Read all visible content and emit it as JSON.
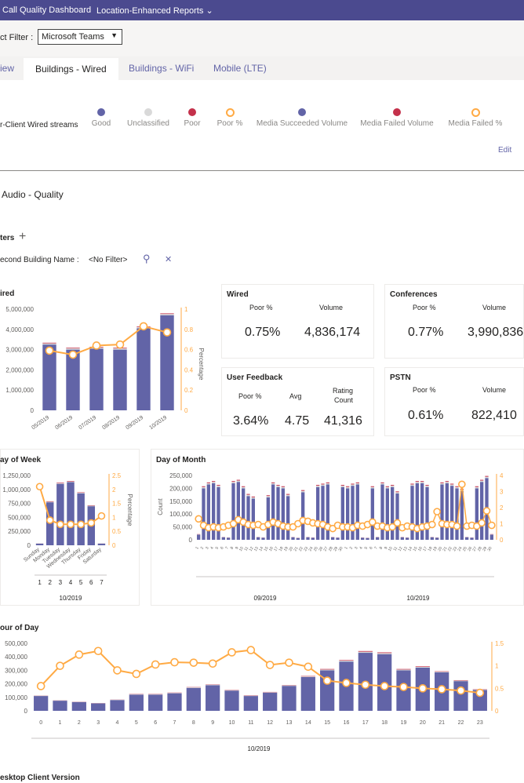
{
  "header": {
    "app_title": "Call Quality Dashboard",
    "nav_reports": "Location-Enhanced Reports",
    "nav_reports_chevron": "⌄"
  },
  "filter": {
    "label": "ct Filter :",
    "value": "Microsoft Teams",
    "chevron": "▼"
  },
  "tabs": [
    {
      "label": "iew"
    },
    {
      "label": "Buildings - Wired"
    },
    {
      "label": "Buildings - WiFi"
    },
    {
      "label": "Mobile (LTE)"
    }
  ],
  "streams": {
    "title": "r-Client Wired streams",
    "legend": [
      {
        "label": "Good",
        "color": "#6264a7",
        "style": "fill"
      },
      {
        "label": "Unclassified",
        "color": "#d9d9d9",
        "style": "fill"
      },
      {
        "label": "Poor",
        "color": "#c4314b",
        "style": "fill"
      },
      {
        "label": "Poor %",
        "color": "#ffaa44",
        "style": "ring"
      },
      {
        "label": "Media Succeeded Volume",
        "color": "#6264a7",
        "style": "fill"
      },
      {
        "label": "Media Failed Volume",
        "color": "#c4314b",
        "style": "fill"
      },
      {
        "label": "Media Failed %",
        "color": "#ffaa44",
        "style": "ring"
      }
    ],
    "edit_label": "Edit"
  },
  "section_title": "Audio - Quality",
  "filters": {
    "title": "ters",
    "add_icon": "+",
    "building_label": "econd Building Name :",
    "building_value": "<No Filter>",
    "search_icon": "⚲",
    "clear_icon": "✕"
  },
  "cards": {
    "wired": {
      "title": "Wired",
      "h1": "Poor %",
      "h2": "Volume",
      "v1": "0.75%",
      "v2": "4,836,174"
    },
    "conferences": {
      "title": "Conferences",
      "h1": "Poor %",
      "h2": "Volume",
      "v1": "0.77%",
      "v2": "3,990,836"
    },
    "feedback": {
      "title": "User Feedback",
      "h1": "Poor %",
      "h2": "Avg",
      "h3a": "Rating",
      "h3b": "Count",
      "v1": "3.64%",
      "v2": "4.75",
      "v3": "41,316"
    },
    "pstn": {
      "title": "PSTN",
      "h1": "Poor %",
      "h2": "Volume",
      "v1": "0.61%",
      "v2": "822,410"
    }
  },
  "chart_titles": {
    "wired": "ired",
    "dow": "ay of Week",
    "dom": "Day of Month",
    "hod": "our of Day",
    "desktop": "esktop Client Version"
  },
  "chart_data": [
    {
      "id": "wired",
      "type": "bar",
      "categories": [
        "05/2019",
        "06/2019",
        "07/2019",
        "08/2019",
        "09/2019",
        "10/2019"
      ],
      "series": [
        {
          "name": "Good",
          "values": [
            3250000,
            3000000,
            3050000,
            3000000,
            4050000,
            4700000
          ]
        },
        {
          "name": "Unclassified",
          "values": [
            60000,
            60000,
            60000,
            60000,
            60000,
            60000
          ]
        },
        {
          "name": "Poor",
          "values": [
            30000,
            30000,
            30000,
            30000,
            30000,
            30000
          ]
        },
        {
          "name": "Poor %",
          "values": [
            0.59,
            0.55,
            0.64,
            0.65,
            0.83,
            0.77
          ]
        }
      ],
      "yticks": [
        "0",
        "1,000,000",
        "2,000,000",
        "3,000,000",
        "4,000,000",
        "5,000,000"
      ],
      "ylim": [
        0,
        5000000
      ],
      "y2ticks": [
        "0",
        "0.2",
        "0.4",
        "0.6",
        "0.8",
        "1"
      ],
      "y2lim": [
        0,
        1
      ],
      "y2label": "Percentage"
    },
    {
      "id": "dow",
      "type": "bar",
      "categories": [
        "Sunday",
        "Monday",
        "Tuesday",
        "Wednesday",
        "Thursday",
        "Friday",
        "Saturday"
      ],
      "series": [
        {
          "name": "Good",
          "values": [
            30000,
            770000,
            1100000,
            1130000,
            930000,
            700000,
            30000
          ]
        },
        {
          "name": "Unclassified",
          "values": [
            2000,
            10000,
            12000,
            12000,
            10000,
            10000,
            2000
          ]
        },
        {
          "name": "Poor",
          "values": [
            1000,
            8000,
            9000,
            9000,
            8000,
            7000,
            1000
          ]
        },
        {
          "name": "Poor %",
          "values": [
            2.1,
            0.9,
            0.75,
            0.75,
            0.75,
            0.8,
            1.05
          ]
        }
      ],
      "xgroup": [
        "1",
        "2",
        "3",
        "4",
        "5",
        "6",
        "7"
      ],
      "period": "10/2019",
      "yticks": [
        "0",
        "250,000",
        "500,000",
        "750,000",
        "1,000,000",
        "1,250,000"
      ],
      "ylim": [
        0,
        1250000
      ],
      "y2ticks": [
        "0",
        "0.5",
        "1",
        "1.5",
        "2",
        "2.5"
      ],
      "y2lim": [
        0,
        2.5
      ],
      "y2label": "Percentage"
    },
    {
      "id": "dom",
      "type": "bar",
      "periods": [
        "09/2019",
        "10/2019"
      ],
      "ticks": [
        "1",
        "2",
        "3",
        "4",
        "5",
        "6",
        "7",
        "8",
        "9",
        "10",
        "11",
        "12",
        "13",
        "14",
        "15",
        "16",
        "17",
        "18",
        "19",
        "20",
        "21",
        "22",
        "23",
        "24",
        "25",
        "26",
        "27",
        "28",
        "29",
        "30"
      ],
      "series": [
        {
          "name": "Good",
          "values": [
            20000,
            200000,
            215000,
            220000,
            205000,
            10000,
            8000,
            220000,
            225000,
            200000,
            170000,
            160000,
            10000,
            8000,
            165000,
            215000,
            205000,
            200000,
            170000,
            10000,
            7000,
            185000,
            10000,
            8000,
            205000,
            210000,
            215000,
            10000,
            8000,
            205000,
            200000,
            210000,
            215000,
            8000,
            7000,
            200000,
            10000,
            215000,
            200000,
            205000,
            180000,
            10000,
            8000,
            210000,
            220000,
            220000,
            205000,
            10000,
            8000,
            215000,
            220000,
            210000,
            200000,
            190000,
            10000,
            8000,
            200000,
            225000,
            240000,
            20000
          ]
        },
        {
          "name": "Unclassified",
          "values": [
            1000,
            5000,
            5000,
            5000,
            5000,
            500,
            500,
            5000,
            5000,
            5000,
            5000,
            5000,
            500,
            500,
            5000,
            5000,
            5000,
            5000,
            5000,
            500,
            500,
            5000,
            500,
            500,
            5000,
            5000,
            5000,
            500,
            500,
            5000,
            5000,
            5000,
            5000,
            500,
            500,
            5000,
            500,
            5000,
            5000,
            5000,
            5000,
            500,
            500,
            5000,
            5000,
            5000,
            5000,
            500,
            500,
            5000,
            5000,
            5000,
            5000,
            5000,
            500,
            500,
            5000,
            5000,
            5000,
            1000
          ]
        },
        {
          "name": "Poor",
          "values": [
            1000,
            3000,
            3000,
            3000,
            3000,
            500,
            500,
            3000,
            3000,
            3000,
            3000,
            3000,
            500,
            500,
            3000,
            3000,
            3000,
            3000,
            3000,
            500,
            500,
            3000,
            500,
            500,
            3000,
            3000,
            3000,
            500,
            500,
            3000,
            3000,
            3000,
            3000,
            500,
            500,
            3000,
            500,
            3000,
            3000,
            3000,
            3000,
            500,
            500,
            3000,
            3000,
            3000,
            3000,
            500,
            500,
            3000,
            3000,
            3000,
            3000,
            3000,
            500,
            500,
            3000,
            3000,
            3000,
            1000
          ]
        },
        {
          "name": "Poor %",
          "values": [
            1.3,
            0.9,
            0.75,
            0.8,
            0.75,
            0.8,
            0.9,
            1.0,
            1.25,
            1.1,
            0.95,
            0.9,
            0.95,
            0.8,
            0.95,
            1.1,
            1.0,
            0.85,
            0.8,
            0.8,
            1.0,
            1.2,
            1.15,
            1.05,
            1.0,
            0.95,
            0.8,
            0.7,
            0.9,
            0.8,
            0.8,
            0.75,
            0.9,
            0.85,
            0.95,
            1.1,
            0.85,
            0.85,
            0.75,
            0.8,
            1.05,
            0.75,
            0.85,
            0.8,
            0.7,
            0.8,
            0.85,
            0.95,
            1.75,
            1.0,
            0.95,
            0.95,
            0.85,
            3.45,
            0.85,
            0.9,
            0.85,
            1.05,
            1.8,
            0.9
          ]
        }
      ],
      "yticks": [
        "0",
        "50,000",
        "100,000",
        "150,000",
        "200,000",
        "250,000"
      ],
      "ylim": [
        0,
        250000
      ],
      "ylabel": "Count",
      "y2ticks": [
        "0",
        "1",
        "2",
        "3",
        "4"
      ],
      "y2lim": [
        0,
        4
      ]
    },
    {
      "id": "hod",
      "type": "bar",
      "categories": [
        "0",
        "1",
        "2",
        "3",
        "4",
        "5",
        "6",
        "7",
        "8",
        "9",
        "10",
        "11",
        "12",
        "13",
        "14",
        "15",
        "16",
        "17",
        "18",
        "19",
        "20",
        "21",
        "22",
        "23"
      ],
      "series": [
        {
          "name": "Good",
          "values": [
            110000,
            75000,
            65000,
            55000,
            80000,
            120000,
            120000,
            130000,
            170000,
            190000,
            150000,
            110000,
            135000,
            185000,
            250000,
            300000,
            365000,
            430000,
            420000,
            300000,
            320000,
            285000,
            220000,
            155000
          ]
        },
        {
          "name": "Unclassified",
          "values": [
            2000,
            2000,
            2000,
            2000,
            2000,
            3000,
            3000,
            3000,
            4000,
            4000,
            3000,
            3000,
            3000,
            4000,
            5000,
            6000,
            7000,
            8000,
            8000,
            6000,
            6000,
            5000,
            4000,
            3000
          ]
        },
        {
          "name": "Poor",
          "values": [
            1000,
            1000,
            1000,
            1000,
            1000,
            2000,
            2000,
            2000,
            2000,
            2000,
            2000,
            2000,
            2000,
            2000,
            3000,
            4000,
            4000,
            5000,
            5000,
            4000,
            4000,
            3000,
            3000,
            2000
          ]
        },
        {
          "name": "Poor %",
          "values": [
            0.55,
            1.0,
            1.25,
            1.33,
            0.9,
            0.82,
            1.03,
            1.08,
            1.07,
            1.05,
            1.3,
            1.35,
            1.02,
            1.07,
            0.98,
            0.67,
            0.62,
            0.58,
            0.55,
            0.53,
            0.5,
            0.48,
            0.45,
            0.4
          ]
        }
      ],
      "period": "10/2019",
      "yticks": [
        "0",
        "100,000",
        "200,000",
        "300,000",
        "400,000",
        "500,000"
      ],
      "ylim": [
        0,
        500000
      ],
      "y2ticks": [
        "0",
        "0.5",
        "1",
        "1.5"
      ],
      "y2lim": [
        0,
        1.5
      ]
    }
  ]
}
